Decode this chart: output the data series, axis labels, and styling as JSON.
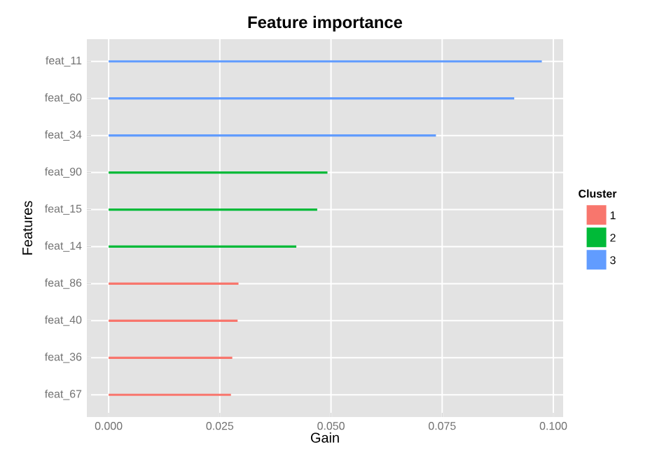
{
  "chart_data": {
    "type": "bar",
    "orientation": "horizontal",
    "title": "Feature importance",
    "xlabel": "Gain",
    "ylabel": "Features",
    "legend_title": "Cluster",
    "categories": [
      "feat_11",
      "feat_60",
      "feat_34",
      "feat_90",
      "feat_15",
      "feat_14",
      "feat_86",
      "feat_40",
      "feat_36",
      "feat_67"
    ],
    "series": [
      {
        "name": "1",
        "color": "#F8766D",
        "values": [
          null,
          null,
          null,
          null,
          null,
          null,
          0.0292,
          0.029,
          0.0278,
          0.0275
        ]
      },
      {
        "name": "2",
        "color": "#00BA38",
        "values": [
          null,
          null,
          null,
          0.0492,
          0.0469,
          0.0422,
          null,
          null,
          null,
          null
        ]
      },
      {
        "name": "3",
        "color": "#619CFF",
        "values": [
          0.0974,
          0.0912,
          0.0736,
          null,
          null,
          null,
          null,
          null,
          null,
          null
        ]
      }
    ],
    "xlim": [
      -0.0049,
      0.1022
    ],
    "xticks": [
      {
        "value": 0,
        "label": "0.000"
      },
      {
        "value": 0.025,
        "label": "0.025"
      },
      {
        "value": 0.05,
        "label": "0.050"
      },
      {
        "value": 0.075,
        "label": "0.075"
      },
      {
        "value": 0.1,
        "label": "0.100"
      }
    ],
    "grid": true,
    "legend": "right"
  }
}
